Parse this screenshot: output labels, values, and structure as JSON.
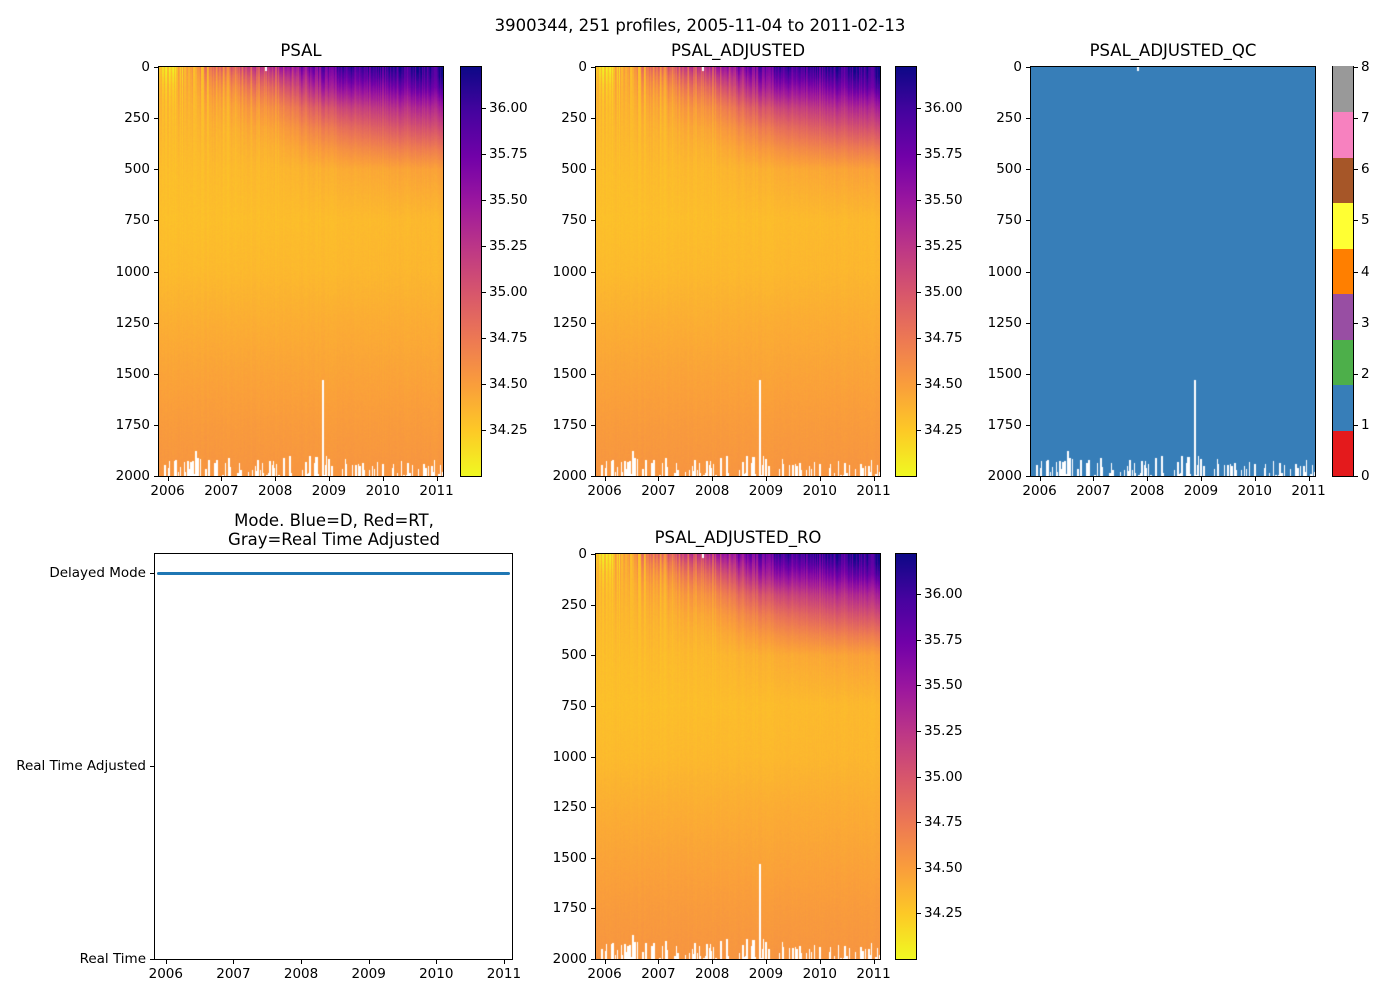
{
  "suptitle": "3900344, 251 profiles, 2005-11-04 to 2011-02-13",
  "n_profiles": 251,
  "date_range_label": "2005-11-04 to 2011-02-13",
  "platform_id": "3900344",
  "colors": {
    "figure_background": "#ffffff",
    "mode_line_blue": "#1f77b4",
    "qc_fill_value1": "#377eb8",
    "plasma_r_stops_top_to_bottom": [
      "#0d0887",
      "#46039f",
      "#7201a8",
      "#9c179e",
      "#bd3786",
      "#d8576b",
      "#ed7953",
      "#fa9e3b",
      "#fdc926",
      "#f0f921"
    ],
    "qc_segment_colors_bottom_to_top": [
      "#e41a1c",
      "#377eb8",
      "#4daf4a",
      "#984ea3",
      "#ff7f00",
      "#ffff33",
      "#a65628",
      "#f781bf",
      "#999999"
    ],
    "missing_data_white": "#ffffff"
  },
  "chart_data": [
    {
      "id": "psal",
      "type": "heatmap",
      "title": "PSAL",
      "xlim": [
        2005.84,
        2011.12
      ],
      "ylim": [
        2000,
        0
      ],
      "xticks": [
        2006,
        2007,
        2008,
        2009,
        2010,
        2011
      ],
      "yticks": [
        0,
        250,
        500,
        750,
        1000,
        1250,
        1500,
        1750,
        2000
      ],
      "colormap": "plasma_r",
      "vmin": 34.0,
      "vmax": 36.22,
      "colorbar_ticks": [
        "36.00",
        "35.75",
        "35.50",
        "35.25",
        "35.00",
        "34.75",
        "34.50",
        "34.25"
      ],
      "grid": {
        "x_years": [
          2006,
          2007,
          2008,
          2009,
          2010,
          2011
        ],
        "depths_m": [
          0,
          50,
          100,
          150,
          200,
          300,
          400,
          500,
          750,
          1000,
          1250,
          1500,
          1750,
          2000
        ],
        "salinity_psu": [
          [
            34.17,
            34.75,
            35.3,
            35.9,
            36.0,
            36.1
          ],
          [
            34.24,
            34.6,
            35.05,
            35.7,
            35.85,
            36.0
          ],
          [
            34.3,
            34.5,
            34.85,
            35.5,
            35.62,
            35.85
          ],
          [
            34.32,
            34.44,
            34.7,
            35.28,
            35.42,
            35.6
          ],
          [
            34.33,
            34.4,
            34.58,
            35.05,
            35.22,
            35.38
          ],
          [
            34.33,
            34.36,
            34.45,
            34.75,
            34.92,
            35.05
          ],
          [
            34.32,
            34.34,
            34.38,
            34.55,
            34.66,
            34.74
          ],
          [
            34.31,
            34.32,
            34.34,
            34.4,
            34.44,
            34.48
          ],
          [
            34.3,
            34.3,
            34.31,
            34.32,
            34.33,
            34.34
          ],
          [
            34.33,
            34.33,
            34.34,
            34.34,
            34.35,
            34.35
          ],
          [
            34.4,
            34.4,
            34.4,
            34.41,
            34.41,
            34.41
          ],
          [
            34.46,
            34.46,
            34.46,
            34.46,
            34.46,
            34.46
          ],
          [
            34.51,
            34.51,
            34.51,
            34.51,
            34.51,
            34.51
          ],
          [
            34.55,
            34.55,
            34.55,
            34.55,
            34.55,
            34.55
          ]
        ]
      },
      "features": {
        "missing_bottom_band_m": [
          1900,
          2000
        ],
        "missing_column_spikes": [
          {
            "time_frac": 0.573,
            "from_m": 1530
          },
          {
            "time_frac": 0.126,
            "from_m": 1880
          }
        ],
        "missing_top_notch_time_frac": 0.374
      }
    },
    {
      "id": "psal_adjusted",
      "type": "heatmap",
      "title": "PSAL_ADJUSTED",
      "xlim": [
        2005.84,
        2011.12
      ],
      "ylim": [
        2000,
        0
      ],
      "xticks": [
        2006,
        2007,
        2008,
        2009,
        2010,
        2011
      ],
      "yticks": [
        0,
        250,
        500,
        750,
        1000,
        1250,
        1500,
        1750,
        2000
      ],
      "colormap": "plasma_r",
      "vmin": 34.0,
      "vmax": 36.22,
      "colorbar_ticks": [
        "36.00",
        "35.75",
        "35.50",
        "35.25",
        "35.00",
        "34.75",
        "34.50",
        "34.25"
      ],
      "grid": {
        "same_as": "psal"
      },
      "features": {
        "same_as": "psal"
      }
    },
    {
      "id": "psal_adjusted_qc",
      "type": "heatmap",
      "title": "PSAL_ADJUSTED_QC",
      "xlim": [
        2005.84,
        2011.12
      ],
      "ylim": [
        2000,
        0
      ],
      "xticks": [
        2006,
        2007,
        2008,
        2009,
        2010,
        2011
      ],
      "yticks": [
        0,
        250,
        500,
        750,
        1000,
        1250,
        1500,
        1750,
        2000
      ],
      "colormap": "Set1_discrete_9",
      "qc_value_everywhere": 1,
      "colorbar_ticks": [
        "0",
        "1",
        "2",
        "3",
        "4",
        "5",
        "6",
        "7",
        "8"
      ],
      "features": {
        "same_as": "psal"
      }
    },
    {
      "id": "mode",
      "type": "line",
      "title": "Mode. Blue=D, Red=RT,\nGray=Real Time Adjusted",
      "title_lines": [
        "Mode. Blue=D, Red=RT,",
        "Gray=Real Time Adjusted"
      ],
      "xlim": [
        2005.84,
        2011.12
      ],
      "ylim": [
        0,
        2.1
      ],
      "xticks": [
        2006,
        2007,
        2008,
        2009,
        2010,
        2011
      ],
      "ytick_values": [
        2,
        1,
        0
      ],
      "ytick_labels": [
        "Delayed Mode",
        "Real Time Adjusted",
        "Real Time"
      ],
      "series": [
        {
          "name": "mode",
          "y_constant": 2,
          "y_label": "Delayed Mode",
          "x_span": [
            2005.84,
            2011.12
          ]
        }
      ]
    },
    {
      "id": "psal_adjusted_ro",
      "type": "heatmap",
      "title": "PSAL_ADJUSTED_RO",
      "xlim": [
        2005.84,
        2011.12
      ],
      "ylim": [
        2000,
        0
      ],
      "xticks": [
        2006,
        2007,
        2008,
        2009,
        2010,
        2011
      ],
      "yticks": [
        0,
        250,
        500,
        750,
        1000,
        1250,
        1500,
        1750,
        2000
      ],
      "colormap": "plasma_r",
      "vmin": 34.0,
      "vmax": 36.22,
      "colorbar_ticks": [
        "36.00",
        "35.75",
        "35.50",
        "35.25",
        "35.00",
        "34.75",
        "34.50",
        "34.25"
      ],
      "grid": {
        "same_as": "psal"
      },
      "features": {
        "same_as": "psal"
      }
    }
  ]
}
